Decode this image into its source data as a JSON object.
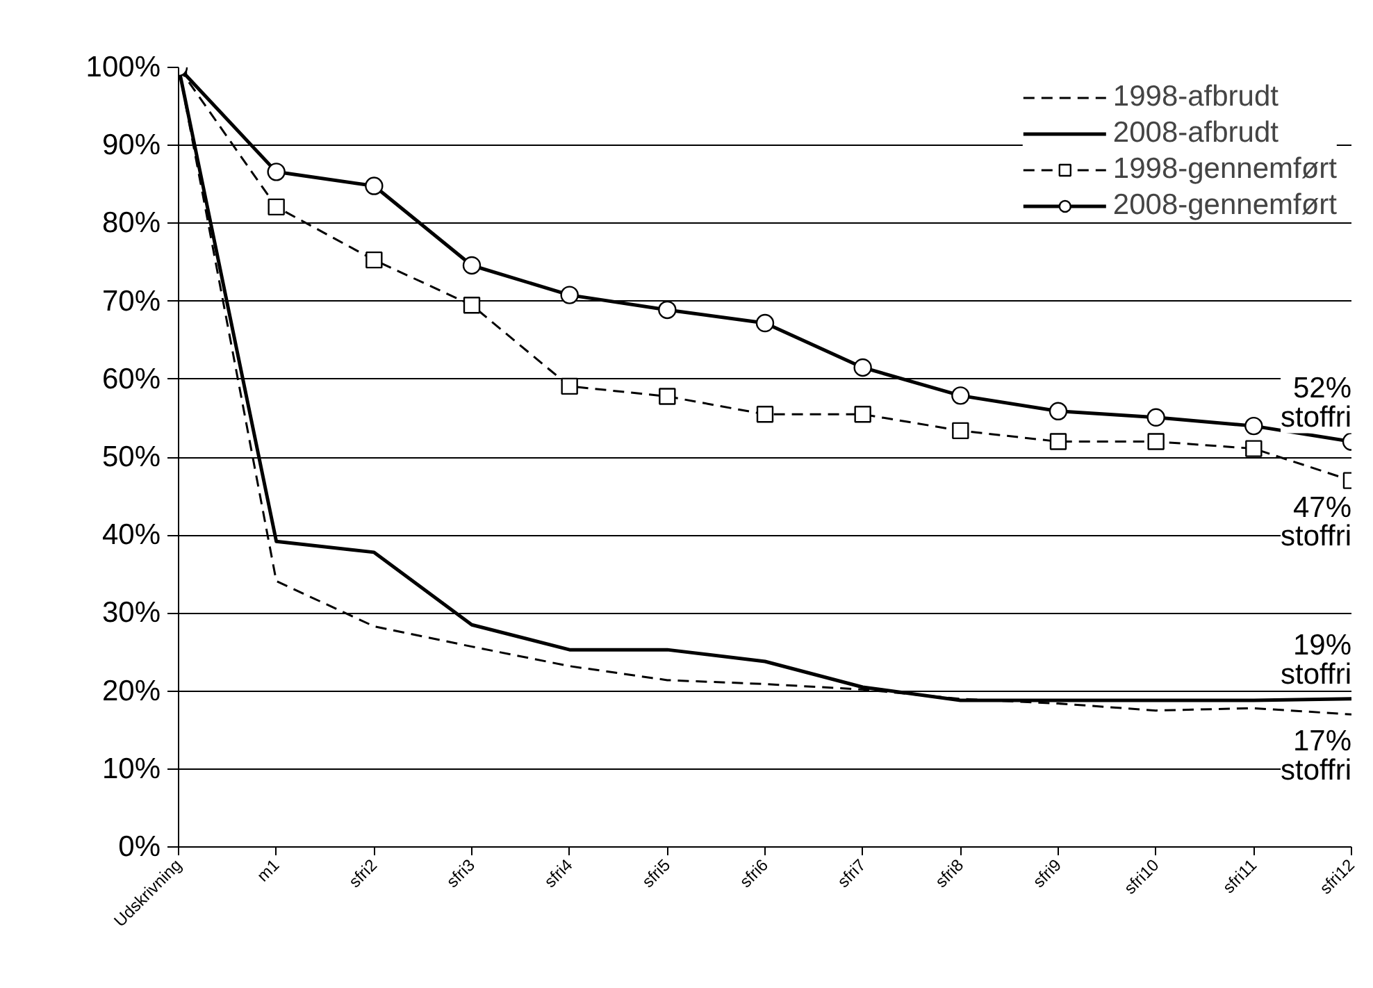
{
  "chart_data": {
    "type": "line",
    "categories": [
      "Udskrivning",
      "m1",
      "sfri2",
      "sfri3",
      "sfri4",
      "sfri5",
      "sfri6",
      "sfri7",
      "sfri8",
      "sfri9",
      "sfri10",
      "sfri11",
      "sfri12"
    ],
    "series": [
      {
        "name": "1998-afbrudt",
        "color": "#000000",
        "line_style": "dashed",
        "marker": "none",
        "values": [
          100,
          34.1,
          28.3,
          25.7,
          23.2,
          21.4,
          20.9,
          20.2,
          19.0,
          18.4,
          17.5,
          17.8,
          17
        ]
      },
      {
        "name": "2008-afbrudt",
        "color": "#000000",
        "line_style": "solid",
        "marker": "none",
        "values": [
          100,
          39.2,
          37.8,
          28.5,
          25.3,
          25.3,
          23.8,
          20.5,
          18.8,
          18.8,
          18.8,
          18.8,
          19
        ]
      },
      {
        "name": "1998-gennemført",
        "color": "#000000",
        "line_style": "dashed",
        "marker": "square",
        "values": [
          100,
          82.1,
          75.3,
          69.5,
          59.1,
          57.8,
          55.5,
          55.5,
          53.4,
          52.0,
          52.0,
          51.1,
          47
        ]
      },
      {
        "name": "2008-gennemført",
        "color": "#000000",
        "line_style": "solid",
        "marker": "circle",
        "values": [
          100,
          86.6,
          84.8,
          74.6,
          70.8,
          68.9,
          67.2,
          61.5,
          57.9,
          55.9,
          55.1,
          54.0,
          52
        ]
      }
    ],
    "ylim": [
      0,
      100
    ],
    "yticks": [
      {
        "value": 0,
        "label": "0%"
      },
      {
        "value": 10,
        "label": "10%"
      },
      {
        "value": 20,
        "label": "20%"
      },
      {
        "value": 30,
        "label": "30%"
      },
      {
        "value": 40,
        "label": "40%"
      },
      {
        "value": 50,
        "label": "50%"
      },
      {
        "value": 60,
        "label": "60%"
      },
      {
        "value": 70,
        "label": "70%"
      },
      {
        "value": 80,
        "label": "80%"
      },
      {
        "value": 90,
        "label": "90%"
      },
      {
        "value": 100,
        "label": "100%"
      }
    ],
    "annotations": [
      {
        "text": "52% stoffri",
        "x": "sfri12",
        "y": 52
      },
      {
        "text": "47% stoffri",
        "x": "sfri12",
        "y": 47
      },
      {
        "text": "19% stoffri",
        "x": "sfri12",
        "y": 19
      },
      {
        "text": "17% stoffri",
        "x": "sfri12",
        "y": 17
      }
    ],
    "grid": "y",
    "legend": "top right"
  }
}
